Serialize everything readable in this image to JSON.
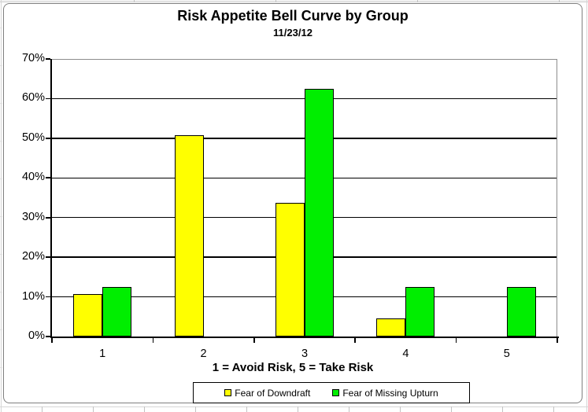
{
  "chart_data": {
    "type": "bar",
    "title": "Risk Appetite Bell Curve by Group",
    "subtitle": "11/23/12",
    "xlabel": "1 = Avoid Risk, 5 = Take Risk",
    "ylabel": "",
    "categories": [
      "1",
      "2",
      "3",
      "4",
      "5"
    ],
    "series": [
      {
        "name": "Fear of Downdraft",
        "color": "#FFFF00",
        "values": [
          10.7,
          50.8,
          33.8,
          4.5,
          0
        ]
      },
      {
        "name": "Fear of Missing Upturn",
        "color": "#00EE00",
        "values": [
          12.5,
          0,
          62.5,
          12.5,
          12.5
        ]
      }
    ],
    "ylim": [
      0,
      70
    ],
    "ytick_step": 10,
    "ytick_labels": [
      "0%",
      "10%",
      "20%",
      "30%",
      "40%",
      "50%",
      "60%",
      "70%"
    ],
    "grid": true,
    "gridline_color": "#000000",
    "bar_border_color": "#000000",
    "plot_background": "#ffffff",
    "legend_position": "bottom"
  }
}
